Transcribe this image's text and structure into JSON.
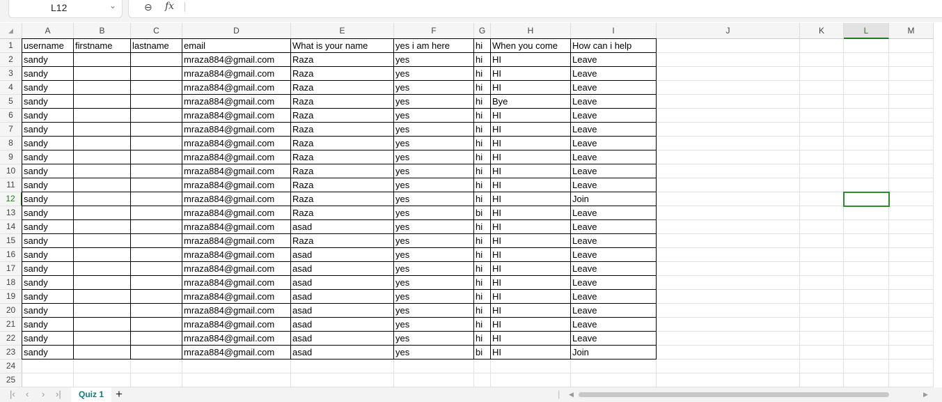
{
  "name_box": {
    "value": "L12"
  },
  "formula_bar": {
    "fx_label": "fx",
    "value": ""
  },
  "columns": [
    "A",
    "B",
    "C",
    "D",
    "E",
    "F",
    "G",
    "H",
    "I",
    "J",
    "K",
    "L",
    "M"
  ],
  "selected_cell": {
    "col": "L",
    "row": 12
  },
  "rows": [
    [
      "username",
      "firstname",
      "lastname",
      "email",
      "What is your name",
      "yes i am here",
      "hi",
      "When you come",
      "How can i help"
    ],
    [
      "sandy",
      "",
      "",
      "mraza884@gmail.com",
      "Raza",
      "yes",
      "hi",
      "HI",
      "Leave"
    ],
    [
      "sandy",
      "",
      "",
      "mraza884@gmail.com",
      "Raza",
      "yes",
      "hi",
      "HI",
      "Leave"
    ],
    [
      "sandy",
      "",
      "",
      "mraza884@gmail.com",
      "Raza",
      "yes",
      "hi",
      "HI",
      "Leave"
    ],
    [
      "sandy",
      "",
      "",
      "mraza884@gmail.com",
      "Raza",
      "yes",
      "hi",
      "Bye",
      "Leave"
    ],
    [
      "sandy",
      "",
      "",
      "mraza884@gmail.com",
      "Raza",
      "yes",
      "hi",
      "HI",
      "Leave"
    ],
    [
      "sandy",
      "",
      "",
      "mraza884@gmail.com",
      "Raza",
      "yes",
      "hi",
      "HI",
      "Leave"
    ],
    [
      "sandy",
      "",
      "",
      "mraza884@gmail.com",
      "Raza",
      "yes",
      "hi",
      "HI",
      "Leave"
    ],
    [
      "sandy",
      "",
      "",
      "mraza884@gmail.com",
      "Raza",
      "yes",
      "hi",
      "HI",
      "Leave"
    ],
    [
      "sandy",
      "",
      "",
      "mraza884@gmail.com",
      "Raza",
      "yes",
      "hi",
      "HI",
      "Leave"
    ],
    [
      "sandy",
      "",
      "",
      "mraza884@gmail.com",
      "Raza",
      "yes",
      "hi",
      "HI",
      "Leave"
    ],
    [
      "sandy",
      "",
      "",
      "mraza884@gmail.com",
      "Raza",
      "yes",
      "hi",
      "HI",
      "Join"
    ],
    [
      "sandy",
      "",
      "",
      "mraza884@gmail.com",
      "Raza",
      "yes",
      "bi",
      "HI",
      "Leave"
    ],
    [
      "sandy",
      "",
      "",
      "mraza884@gmail.com",
      "asad",
      "yes",
      "hi",
      "HI",
      "Leave"
    ],
    [
      "sandy",
      "",
      "",
      "mraza884@gmail.com",
      "Raza",
      "yes",
      "hi",
      "HI",
      "Leave"
    ],
    [
      "sandy",
      "",
      "",
      "mraza884@gmail.com",
      "asad",
      "yes",
      "hi",
      "HI",
      "Leave"
    ],
    [
      "sandy",
      "",
      "",
      "mraza884@gmail.com",
      "asad",
      "yes",
      "hi",
      "HI",
      "Leave"
    ],
    [
      "sandy",
      "",
      "",
      "mraza884@gmail.com",
      "asad",
      "yes",
      "hi",
      "HI",
      "Leave"
    ],
    [
      "sandy",
      "",
      "",
      "mraza884@gmail.com",
      "asad",
      "yes",
      "hi",
      "HI",
      "Leave"
    ],
    [
      "sandy",
      "",
      "",
      "mraza884@gmail.com",
      "asad",
      "yes",
      "hi",
      "HI",
      "Leave"
    ],
    [
      "sandy",
      "",
      "",
      "mraza884@gmail.com",
      "asad",
      "yes",
      "hi",
      "HI",
      "Leave"
    ],
    [
      "sandy",
      "",
      "",
      "mraza884@gmail.com",
      "asad",
      "yes",
      "hi",
      "HI",
      "Leave"
    ],
    [
      "sandy",
      "",
      "",
      "mraza884@gmail.com",
      "asad",
      "yes",
      "bi",
      "HI",
      "Join"
    ]
  ],
  "row_count": 25,
  "sheet_tabs": [
    {
      "label": "Quiz 1",
      "active": true
    }
  ],
  "add_sheet_label": "+",
  "colors": {
    "accent": "#1e7a1e",
    "tab_text": "#0f7b7b"
  }
}
